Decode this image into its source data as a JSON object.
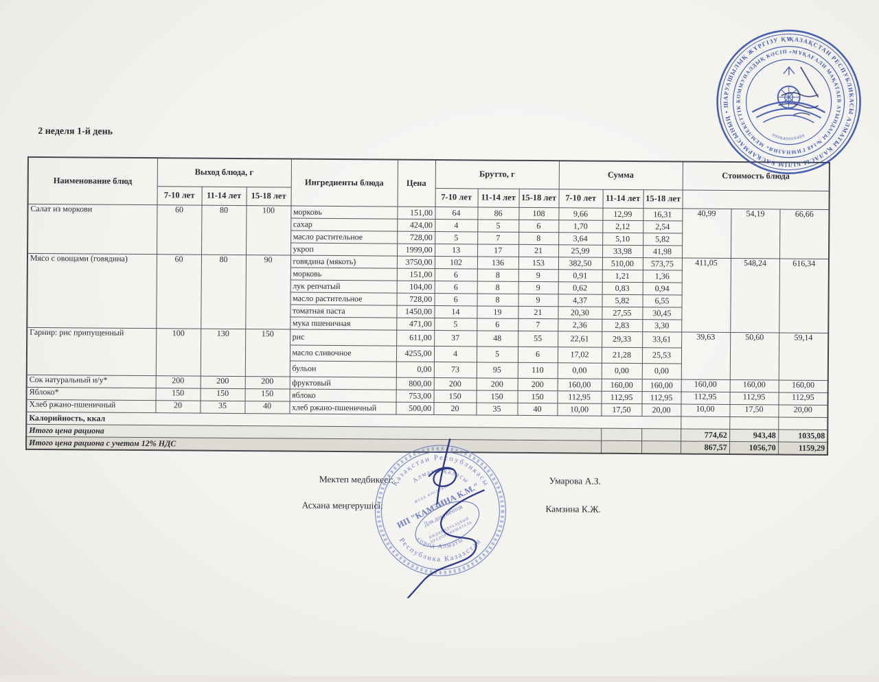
{
  "page": {
    "title": "2 неделя 1-й день"
  },
  "table": {
    "headers": {
      "dish": "Наименование блюд",
      "output": "Выход блюда, г",
      "ingredients": "Ингредиенты блюда",
      "price": "Цена",
      "gross": "Брутто, г",
      "sum": "Сумма",
      "cost": "Стоимость блюда",
      "age_groups": [
        "7-10 лет",
        "11-14 лет",
        "15-18 лет"
      ]
    },
    "dishes": [
      {
        "name": "Салат из моркови",
        "output": [
          "60",
          "80",
          "100"
        ],
        "cost": [
          "40,99",
          "54,19",
          "66,66"
        ],
        "ingredients": [
          {
            "name": "морковь",
            "price": "151,00",
            "gross": [
              "64",
              "86",
              "108"
            ],
            "sum": [
              "9,66",
              "12,99",
              "16,31"
            ]
          },
          {
            "name": "сахар",
            "price": "424,00",
            "gross": [
              "4",
              "5",
              "6"
            ],
            "sum": [
              "1,70",
              "2,12",
              "2,54"
            ]
          },
          {
            "name": "масло растительное",
            "price": "728,00",
            "gross": [
              "5",
              "7",
              "8"
            ],
            "sum": [
              "3,64",
              "5,10",
              "5,82"
            ]
          },
          {
            "name": "укроп",
            "price": "1999,00",
            "gross": [
              "13",
              "17",
              "21"
            ],
            "sum": [
              "25,99",
              "33,98",
              "41,98"
            ]
          }
        ]
      },
      {
        "name": "Мясо с овощами (говядина)",
        "output": [
          "60",
          "80",
          "90"
        ],
        "cost": [
          "411,05",
          "548,24",
          "616,34"
        ],
        "ingredients": [
          {
            "name": "говядина (мякоть)",
            "price": "3750,00",
            "gross": [
              "102",
              "136",
              "153"
            ],
            "sum": [
              "382,50",
              "510,00",
              "573,75"
            ]
          },
          {
            "name": "морковь",
            "price": "151,00",
            "gross": [
              "6",
              "8",
              "9"
            ],
            "sum": [
              "0,91",
              "1,21",
              "1,36"
            ]
          },
          {
            "name": "лук репчатый",
            "price": "104,00",
            "gross": [
              "6",
              "8",
              "9"
            ],
            "sum": [
              "0,62",
              "0,83",
              "0,94"
            ]
          },
          {
            "name": "масло растительное",
            "price": "728,00",
            "gross": [
              "6",
              "8",
              "9"
            ],
            "sum": [
              "4,37",
              "5,82",
              "6,55"
            ]
          },
          {
            "name": "томатная паста",
            "price": "1450,00",
            "gross": [
              "14",
              "19",
              "21"
            ],
            "sum": [
              "20,30",
              "27,55",
              "30,45"
            ]
          },
          {
            "name": "мука пшеничная",
            "price": "471,00",
            "gross": [
              "5",
              "6",
              "7"
            ],
            "sum": [
              "2,36",
              "2,83",
              "3,30"
            ]
          }
        ]
      },
      {
        "name": "Гарнир: рис припущенный",
        "output": [
          "100",
          "130",
          "150"
        ],
        "cost": [
          "39,63",
          "50,60",
          "59,14"
        ],
        "ingredients": [
          {
            "name": "рис",
            "price": "611,00",
            "gross": [
              "37",
              "48",
              "55"
            ],
            "sum": [
              "22,61",
              "29,33",
              "33,61"
            ]
          },
          {
            "name": "масло сливочное",
            "price": "4255,00",
            "gross": [
              "4",
              "5",
              "6"
            ],
            "sum": [
              "17,02",
              "21,28",
              "25,53"
            ]
          },
          {
            "name": "бульон",
            "price": "0,00",
            "gross": [
              "73",
              "95",
              "110"
            ],
            "sum": [
              "0,00",
              "0,00",
              "0,00"
            ]
          }
        ]
      },
      {
        "name": "Сок натуральный и/у*",
        "output": [
          "200",
          "200",
          "200"
        ],
        "cost": [
          "160,00",
          "160,00",
          "160,00"
        ],
        "ingredients": [
          {
            "name": "фруктовый",
            "price": "800,00",
            "gross": [
              "200",
              "200",
              "200"
            ],
            "sum": [
              "160,00",
              "160,00",
              "160,00"
            ]
          }
        ]
      },
      {
        "name": "Яблоко*",
        "output": [
          "150",
          "150",
          "150"
        ],
        "cost": [
          "112,95",
          "112,95",
          "112,95"
        ],
        "ingredients": [
          {
            "name": "яблоко",
            "price": "753,00",
            "gross": [
              "150",
              "150",
              "150"
            ],
            "sum": [
              "112,95",
              "112,95",
              "112,95"
            ]
          }
        ]
      },
      {
        "name": "Хлеб ржано-пшеничный",
        "output": [
          "20",
          "35",
          "40"
        ],
        "cost": [
          "10,00",
          "17,50",
          "20,00"
        ],
        "ingredients": [
          {
            "name": "хлеб ржано-пшеничный",
            "price": "500,00",
            "gross": [
              "20",
              "35",
              "40"
            ],
            "sum": [
              "10,00",
              "17,50",
              "20,00"
            ]
          }
        ]
      }
    ],
    "calories_label": "Калорийность, ккал",
    "totals": [
      {
        "label": "Итого цена рациона",
        "values": [
          "774,62",
          "943,48",
          "1035,08"
        ]
      },
      {
        "label": "Итого цена рациона с учетом 12% НДС",
        "values": [
          "867,57",
          "1056,70",
          "1159,29"
        ]
      }
    ]
  },
  "signatures": [
    {
      "role": "Мектеп медбикесі:",
      "name": "Умарова А.З."
    },
    {
      "role": "Асхана меңгерушісі:",
      "name": "Камзина К.Ж."
    }
  ],
  "stamps": {
    "school": {
      "outer_text": "ҚАЗАҚСТАН РЕСПУБЛИКАСЫ АЛМАТЫ ҚАЛАСЫ БІЛІМ БАСҚАРМАСЫНЫҢ • ШАРУАШЫЛЫҚ ЖҮРГІЗУ ҚҰҚЫҒЫНДАҒЫ •",
      "inner_text": "«МҰҚАҒАЛИ МАҚАТАЕВ АТЫНДАҒЫ №148 ГИМНАЗИЯ» МЕМЛЕКЕТТІК КОММУНАЛДЫҚ КӘСІПОРНЫ •",
      "center_number": "990840008489",
      "color": "#2e4cab"
    },
    "entrepreneur": {
      "ring_top": "Қазақстан Республикасы",
      "ring_bottom": "Республика Казахстан",
      "inner_top": "Алматы қаласы",
      "inner_bottom": "город Алматы",
      "tiny_top": "ЖЕКЕ КӘСІПКЕР",
      "name": "ИП \"КАМЗИНА К.М.\"",
      "purpose": "Для документов",
      "ellipse_line1": "ИНДИВИДУАЛЬНЫЙ",
      "ellipse_line2": "ПРЕДПРИНИМАТЕЛЬ",
      "color": "#5a6fbe"
    }
  }
}
